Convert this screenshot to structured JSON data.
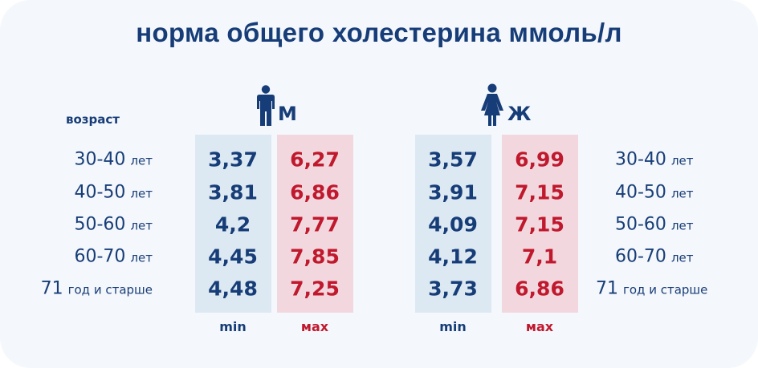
{
  "title": "норма общего холестерина ммоль/л",
  "age_header": "возраст",
  "age_unit_plural": "лет",
  "age_groups": [
    {
      "num": "30-40",
      "unit": "лет"
    },
    {
      "num": "40-50",
      "unit": "лет"
    },
    {
      "num": "50-60",
      "unit": "лет"
    },
    {
      "num": "60-70",
      "unit": "лет"
    },
    {
      "num": "71",
      "unit": "год и старше"
    }
  ],
  "male": {
    "letter": "М",
    "icon": "male-figure-icon",
    "min_label": "min",
    "max_label": "мах",
    "min": [
      "3,37",
      "3,81",
      "4,2",
      "4,45",
      "4,48"
    ],
    "max": [
      "6,27",
      "6,86",
      "7,77",
      "7,85",
      "7,25"
    ]
  },
  "female": {
    "letter": "Ж",
    "icon": "female-figure-icon",
    "min_label": "min",
    "max_label": "мах",
    "min": [
      "3,57",
      "3,91",
      "4,09",
      "4,12",
      "3,73"
    ],
    "max": [
      "6,99",
      "7,15",
      "7,15",
      "7,1",
      "6,86"
    ]
  },
  "colors": {
    "text_blue": "#173d78",
    "text_red": "#c0192e",
    "min_column_bg": "#dde9f2",
    "max_column_bg": "#f2d8de",
    "card_bg": "#f4f7fb"
  },
  "chart_data": {
    "type": "table",
    "title": "норма общего холестерина ммоль/л",
    "row_header": "возраст",
    "rows": [
      "30-40 лет",
      "40-50 лет",
      "50-60 лет",
      "60-70 лет",
      "71 год и старше"
    ],
    "series": [
      {
        "name": "М min",
        "values": [
          3.37,
          3.81,
          4.2,
          4.45,
          4.48
        ]
      },
      {
        "name": "М мах",
        "values": [
          6.27,
          6.86,
          7.77,
          7.85,
          7.25
        ]
      },
      {
        "name": "Ж min",
        "values": [
          3.57,
          3.91,
          4.09,
          4.12,
          3.73
        ]
      },
      {
        "name": "Ж мах",
        "values": [
          6.99,
          7.15,
          7.15,
          7.1,
          6.86
        ]
      }
    ]
  }
}
